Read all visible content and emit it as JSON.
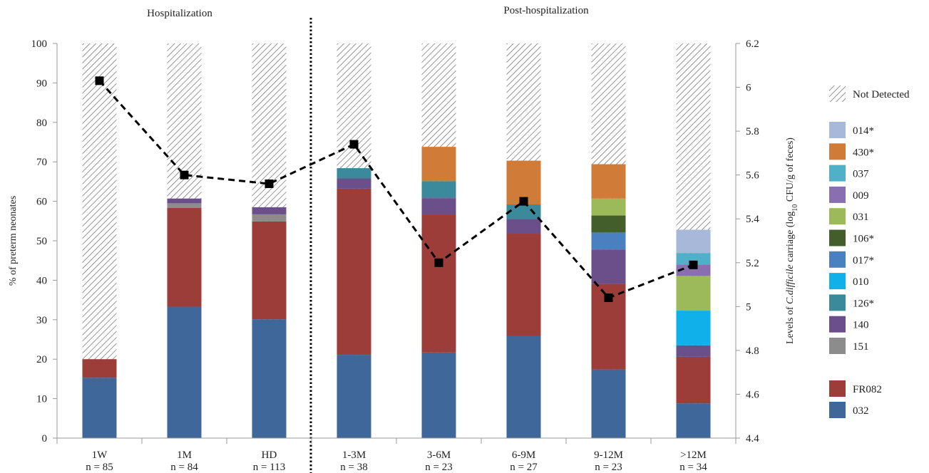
{
  "sections": {
    "left": "Hospitalization",
    "right": "Post-hospitalization"
  },
  "chart_data": {
    "type": "bar",
    "stacked": true,
    "categories": [
      "1W",
      "1M",
      "HD",
      "1-3M",
      "3-6M",
      "6-9M",
      "9-12M",
      ">12M"
    ],
    "sample_sizes": [
      "n = 85",
      "n = 84",
      "n = 113",
      "n = 38",
      "n = 23",
      "n = 27",
      "n = 23",
      "n = 34"
    ],
    "ylabel": "% of preterm neonates",
    "ylim": [
      0,
      100
    ],
    "yticks": [
      0,
      10,
      20,
      30,
      40,
      50,
      60,
      70,
      80,
      90,
      100
    ],
    "y2label_parts": {
      "pre": "Levels of ",
      "species": "C.difficile",
      "mid": " carriage (log",
      "sub": "10",
      "post": " CFU/g of feces)"
    },
    "y2lim": [
      4.4,
      6.2
    ],
    "y2ticks": [
      "4.4",
      "4.6",
      "4.8",
      "5",
      "5.2",
      "5.4",
      "5.6",
      "5.8",
      "6",
      "6.2"
    ],
    "grid": false,
    "legend_position": "right",
    "series": [
      {
        "name": "032",
        "color": "#3f679a",
        "values": [
          15.3,
          33.3,
          30.1,
          21.1,
          21.7,
          25.9,
          17.4,
          8.8
        ]
      },
      {
        "name": "FR082",
        "color": "#9d3d39",
        "values": [
          4.7,
          25.0,
          24.8,
          42.1,
          34.8,
          25.9,
          21.7,
          11.8
        ]
      },
      {
        "name": "151",
        "color": "#8c8c8c",
        "values": [
          0,
          1.2,
          1.8,
          0,
          0,
          0,
          0,
          0
        ]
      },
      {
        "name": "140",
        "color": "#6a4f8a",
        "values": [
          0,
          1.2,
          1.8,
          2.6,
          4.3,
          3.7,
          8.7,
          2.9
        ]
      },
      {
        "name": "126*",
        "color": "#3b8a9b",
        "values": [
          0,
          0,
          0,
          2.6,
          4.3,
          3.7,
          0,
          0
        ]
      },
      {
        "name": "010",
        "color": "#10b0ea",
        "values": [
          0,
          0,
          0,
          0,
          0,
          0,
          0,
          8.8
        ]
      },
      {
        "name": "017*",
        "color": "#4a7fc0",
        "values": [
          0,
          0,
          0,
          0,
          0,
          0,
          4.3,
          0
        ]
      },
      {
        "name": "106*",
        "color": "#435e2a",
        "values": [
          0,
          0,
          0,
          0,
          0,
          0,
          4.3,
          0
        ]
      },
      {
        "name": "031",
        "color": "#9dba5a",
        "values": [
          0,
          0,
          0,
          0,
          0,
          0,
          4.3,
          8.8
        ]
      },
      {
        "name": "009",
        "color": "#8a6fb0",
        "values": [
          0,
          0,
          0,
          0,
          0,
          0,
          0,
          2.9
        ]
      },
      {
        "name": "037",
        "color": "#4fb0c8",
        "values": [
          0,
          0,
          0,
          0,
          0,
          0,
          0,
          2.9
        ]
      },
      {
        "name": "430*",
        "color": "#d07b37",
        "values": [
          0,
          0,
          0,
          0,
          8.7,
          11.1,
          8.7,
          0
        ]
      },
      {
        "name": "014*",
        "color": "#a8b8d8",
        "values": [
          0,
          0,
          0,
          0,
          0,
          0,
          0,
          5.9
        ]
      }
    ],
    "not_detected_label": "Not Detected",
    "legend_order": [
      "014*",
      "430*",
      "037",
      "009",
      "031",
      "106*",
      "017*",
      "010",
      "126*",
      "140",
      "151"
    ],
    "legend_bottom": [
      "FR082",
      "032"
    ],
    "line": {
      "name": "Levels of C.difficile carriage",
      "axis": "right",
      "values": [
        6.03,
        5.6,
        5.56,
        5.74,
        5.2,
        5.48,
        5.04,
        5.19
      ]
    }
  }
}
